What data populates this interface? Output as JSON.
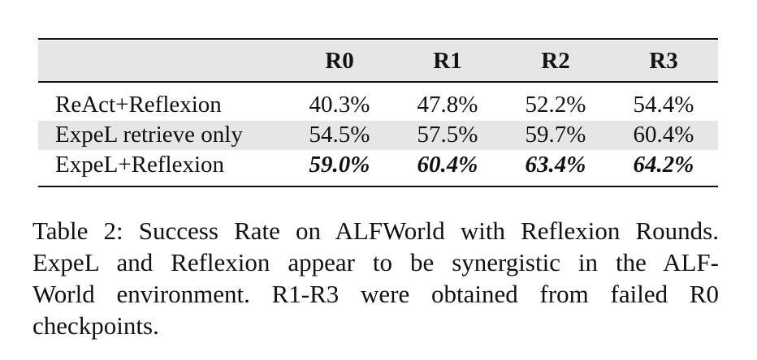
{
  "table": {
    "columns": [
      "R0",
      "R1",
      "R2",
      "R3"
    ],
    "rows": [
      {
        "label": "ReAct+Reflexion",
        "cells": [
          "40.3%",
          "47.8%",
          "52.2%",
          "54.4%"
        ],
        "shaded": false,
        "bold": false
      },
      {
        "label": "ExpeL retrieve only",
        "cells": [
          "54.5%",
          "57.5%",
          "59.7%",
          "60.4%"
        ],
        "shaded": true,
        "bold": false
      },
      {
        "label": "ExpeL+Reflexion",
        "cells": [
          "59.0%",
          "60.4%",
          "63.4%",
          "64.2%"
        ],
        "shaded": false,
        "bold": true
      }
    ],
    "caption_lines": [
      "Table 2: Success Rate on ALFWorld with Reflexion Rounds.",
      "ExpeL and Reflexion appear to be synergistic in the ALF-",
      "World environment. R1-R3 were obtained from failed R0",
      "checkpoints."
    ]
  }
}
